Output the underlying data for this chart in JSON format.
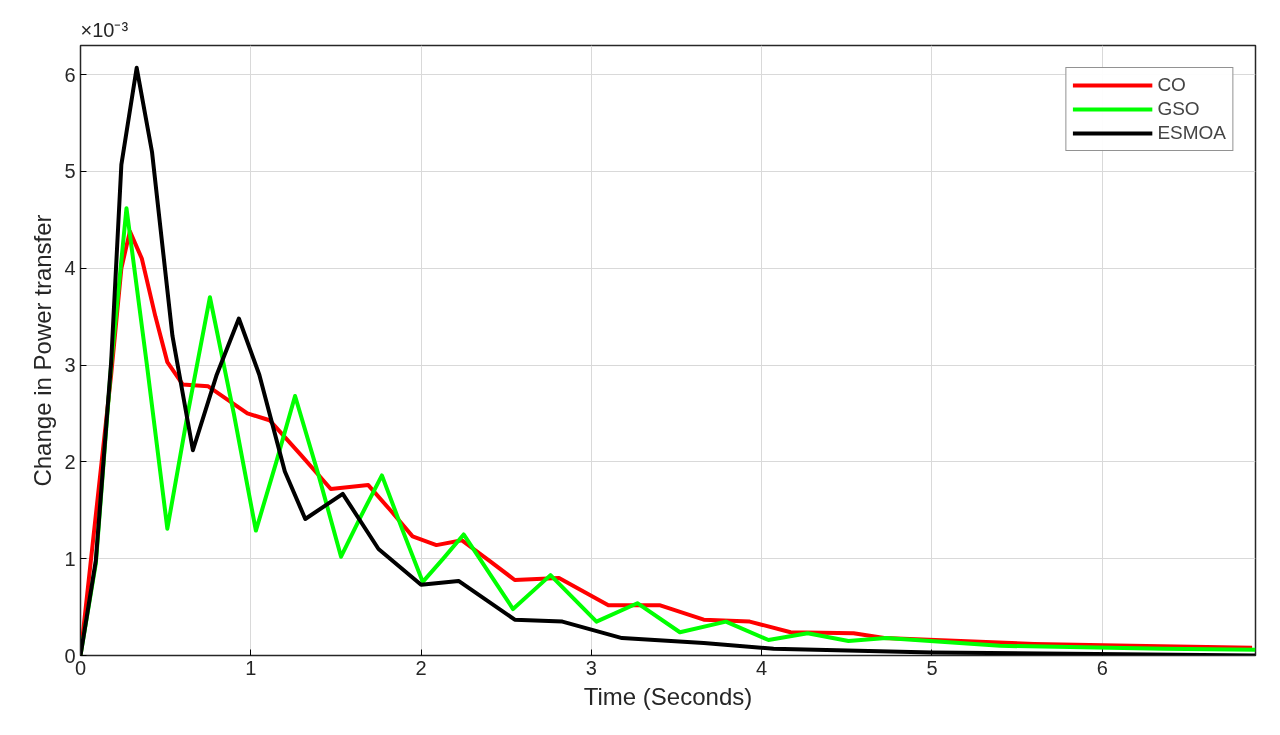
{
  "chart_data": {
    "type": "line",
    "xlabel": "Time (Seconds)",
    "ylabel": "Change in Power transfer",
    "annotations": [
      "×10⁻³"
    ],
    "xlim": [
      0,
      6.9
    ],
    "ylim": [
      0,
      6.3
    ],
    "xticks": [
      0,
      1,
      2,
      3,
      4,
      5,
      6
    ],
    "yticks": [
      0,
      1,
      2,
      3,
      4,
      5,
      6
    ],
    "grid": true,
    "legend": "top right",
    "line_style": "solid",
    "series": [
      {
        "name": "CO",
        "color": "#ff0000",
        "x": [
          0,
          0.18,
          0.24,
          0.29,
          0.36,
          0.44,
          0.51,
          0.6,
          0.75,
          0.98,
          1.11,
          1.29,
          1.47,
          1.69,
          1.82,
          1.95,
          2.09,
          2.24,
          2.4,
          2.55,
          2.81,
          3.1,
          3.4,
          3.66,
          3.93,
          4.17,
          4.54,
          4.72,
          5.02,
          5.6,
          6.17,
          6.88
        ],
        "values": [
          0,
          2.9,
          4.0,
          4.38,
          4.1,
          3.5,
          3.03,
          2.8,
          2.78,
          2.5,
          2.43,
          2.08,
          1.72,
          1.76,
          1.5,
          1.23,
          1.14,
          1.19,
          0.98,
          0.78,
          0.8,
          0.52,
          0.52,
          0.37,
          0.35,
          0.24,
          0.23,
          0.18,
          0.16,
          0.12,
          0.1,
          0.08
        ]
      },
      {
        "name": "GSO",
        "color": "#00ff00",
        "x": [
          0,
          0.09,
          0.18,
          0.27,
          0.39,
          0.51,
          0.63,
          0.76,
          0.9,
          1.03,
          1.15,
          1.26,
          1.4,
          1.53,
          1.65,
          1.77,
          1.89,
          2.01,
          2.13,
          2.25,
          2.54,
          2.76,
          3.03,
          3.27,
          3.52,
          3.79,
          4.04,
          4.27,
          4.51,
          4.73,
          5.4,
          6.36,
          6.9
        ],
        "values": [
          0,
          0.95,
          3.0,
          4.62,
          3.0,
          1.31,
          2.5,
          3.7,
          2.5,
          1.29,
          2.0,
          2.68,
          1.85,
          1.02,
          1.45,
          1.86,
          1.3,
          0.76,
          1.0,
          1.25,
          0.48,
          0.83,
          0.35,
          0.54,
          0.24,
          0.35,
          0.16,
          0.23,
          0.15,
          0.18,
          0.1,
          0.07,
          0.06
        ]
      },
      {
        "name": "ESMOA",
        "color": "#000000",
        "x": [
          0,
          0.09,
          0.18,
          0.24,
          0.33,
          0.42,
          0.54,
          0.66,
          0.8,
          0.93,
          1.05,
          1.2,
          1.32,
          1.54,
          1.75,
          2.0,
          2.22,
          2.55,
          2.83,
          3.18,
          3.66,
          4.07,
          5.0,
          6.9
        ],
        "values": [
          0,
          0.98,
          3.03,
          5.07,
          6.07,
          5.2,
          3.3,
          2.12,
          2.9,
          3.48,
          2.9,
          1.9,
          1.41,
          1.67,
          1.1,
          0.73,
          0.77,
          0.37,
          0.35,
          0.18,
          0.13,
          0.07,
          0.03,
          0.0
        ]
      }
    ]
  }
}
